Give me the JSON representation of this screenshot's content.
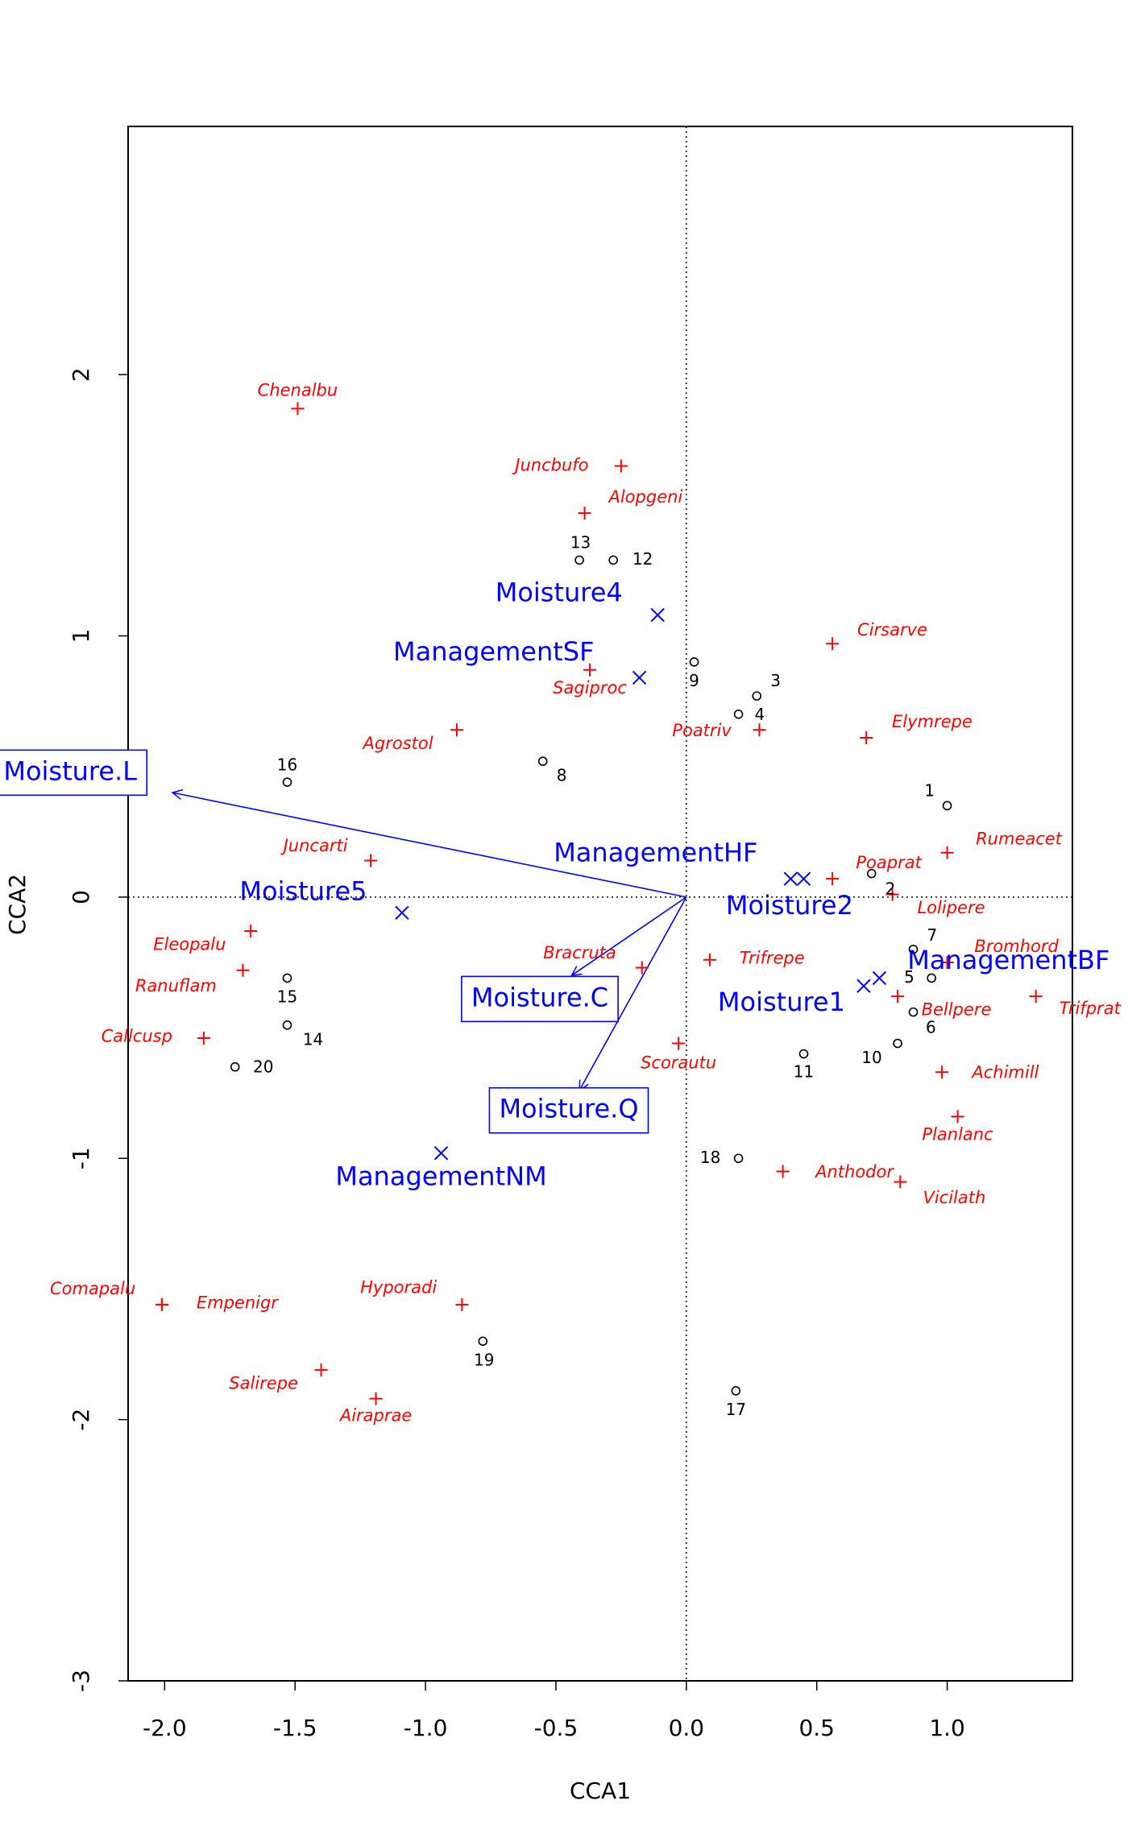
{
  "chart_data": {
    "type": "biplot",
    "x_label": "CCA1",
    "y_label": "CCA2",
    "xlim": [
      -2.14,
      1.48
    ],
    "ylim": [
      -3.0,
      2.95
    ],
    "xticks": [
      {
        "value": -2.0,
        "label": "-2.0"
      },
      -1.5,
      {
        "value": -1.0,
        "label": "-1.0"
      },
      -0.5,
      {
        "value": 0.0,
        "label": "0.0"
      },
      0.5,
      {
        "value": 1.0,
        "label": "1.0"
      }
    ],
    "yticks": [
      -3,
      -2,
      -1,
      0,
      1,
      2
    ],
    "species": {
      "color": "#ff0000",
      "labels": [
        "Chenalbu",
        "Juncbufo",
        "Alopgeni",
        "Cirsarve",
        "Sagiproc",
        "Agrostol",
        "Poatriv",
        "Elymrepe",
        "Rumeacet",
        "Juncarti",
        "Poaprat",
        "Lolipere",
        "Eleopalu",
        "Bromhord",
        "Trifrepe",
        "Bracruta",
        "Ranuflam",
        "Bellpere",
        "Trifprat",
        "Callcusp",
        "Scorautu",
        "Achimill",
        "Planlanc",
        "Anthodor",
        "Vicilath",
        "Hyporadi",
        "Comapalu",
        "Empenigr",
        "Salirepe",
        "Airaprae"
      ],
      "x": [
        -1.49,
        -0.25,
        -0.39,
        0.56,
        -0.37,
        -0.88,
        0.28,
        0.69,
        1.0,
        -1.21,
        0.56,
        0.79,
        -1.67,
        1.0,
        0.09,
        -0.17,
        -1.7,
        0.81,
        1.34,
        -1.85,
        -0.03,
        0.98,
        1.04,
        0.37,
        0.82,
        -0.86,
        -2.01,
        -2.01,
        -1.4,
        -1.19
      ],
      "y": [
        1.87,
        1.65,
        1.47,
        0.97,
        0.87,
        0.64,
        0.64,
        0.61,
        0.17,
        0.14,
        0.07,
        0.01,
        -0.13,
        -0.25,
        -0.24,
        -0.27,
        -0.28,
        -0.38,
        -0.38,
        -0.54,
        -0.56,
        -0.67,
        -0.84,
        -1.05,
        -1.09,
        -1.56,
        -1.56,
        -1.56,
        -1.81,
        -1.92
      ]
    },
    "sites": {
      "color": "#000000",
      "labels": [
        "1",
        "2",
        "3",
        "4",
        "5",
        "6",
        "7",
        "8",
        "9",
        "10",
        "11",
        "12",
        "13",
        "14",
        "15",
        "16",
        "17",
        "18",
        "19",
        "20"
      ],
      "x": [
        1.0,
        0.71,
        0.27,
        0.2,
        0.94,
        0.87,
        0.87,
        -0.55,
        0.03,
        0.81,
        0.45,
        -0.28,
        -0.41,
        -1.53,
        -1.53,
        -1.53,
        0.19,
        0.2,
        -0.78,
        -1.73
      ],
      "y": [
        0.35,
        0.09,
        0.77,
        0.7,
        -0.31,
        -0.44,
        -0.2,
        0.52,
        0.9,
        -0.56,
        -0.6,
        1.29,
        1.29,
        -0.49,
        -0.31,
        0.44,
        -1.89,
        -1.0,
        -1.7,
        -0.65
      ]
    },
    "centroids": {
      "color": "#0000ff",
      "labels": [
        "Moisture4",
        "ManagementSF",
        "Moisture5",
        "ManagementHF",
        "Moisture2",
        "Moisture1",
        "ManagementBF",
        "ManagementNM"
      ],
      "x": [
        -0.11,
        -0.18,
        -1.09,
        0.45,
        0.4,
        0.68,
        0.74,
        -0.94
      ],
      "y": [
        1.08,
        0.84,
        -0.06,
        0.07,
        0.07,
        -0.34,
        -0.31,
        -0.98
      ]
    },
    "arrows": {
      "color": "#0000ff",
      "labels": [
        "Moisture.L",
        "Moisture.C",
        "Moisture.Q"
      ],
      "x": [
        -1.97,
        -0.44,
        -0.41
      ],
      "y": [
        0.4,
        -0.3,
        -0.74
      ]
    }
  }
}
